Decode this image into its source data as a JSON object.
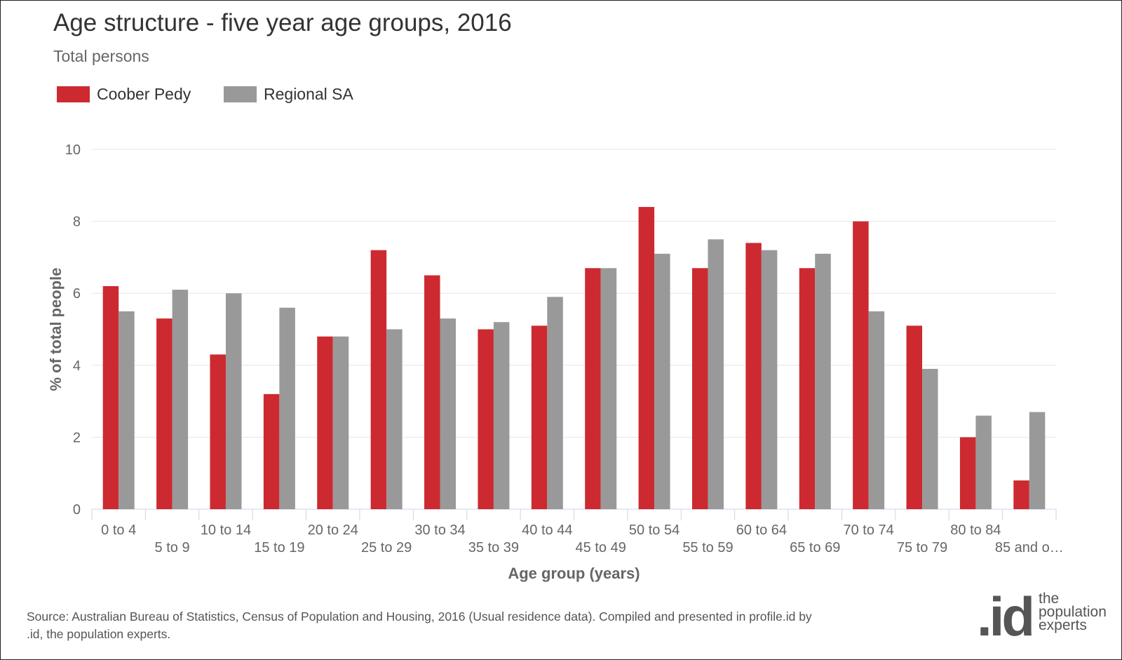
{
  "title": "Age structure - five year age groups, 2016",
  "subtitle": "Total persons",
  "legend": [
    {
      "label": "Coober Pedy",
      "color": "#cc2a30"
    },
    {
      "label": "Regional SA",
      "color": "#999999"
    }
  ],
  "source": "Source: Australian Bureau of Statistics, Census of Population and Housing, 2016 (Usual residence data). Compiled and presented in profile.id by .id, the population experts.",
  "logo": {
    "mark": ".id",
    "line1": "the",
    "line2": "population",
    "line3": "experts"
  },
  "chart_data": {
    "type": "bar",
    "title": "Age structure - five year age groups, 2016",
    "subtitle": "Total persons",
    "xlabel": "Age group (years)",
    "ylabel": "% of total people",
    "ylim": [
      0,
      10
    ],
    "yticks": [
      0,
      2,
      4,
      6,
      8,
      10
    ],
    "grid": true,
    "legend_position": "top-left",
    "categories": [
      "0 to 4",
      "5 to 9",
      "10 to 14",
      "15 to 19",
      "20 to 24",
      "25 to 29",
      "30 to 34",
      "35 to 39",
      "40 to 44",
      "45 to 49",
      "50 to 54",
      "55 to 59",
      "60 to 64",
      "65 to 69",
      "70 to 74",
      "75 to 79",
      "80 to 84",
      "85 and o…"
    ],
    "series": [
      {
        "name": "Coober Pedy",
        "color": "#cc2a30",
        "values": [
          6.2,
          5.3,
          4.3,
          3.2,
          4.8,
          7.2,
          6.5,
          5.0,
          5.1,
          6.7,
          8.4,
          6.7,
          7.4,
          6.7,
          8.0,
          5.1,
          2.0,
          0.8
        ]
      },
      {
        "name": "Regional SA",
        "color": "#999999",
        "values": [
          5.5,
          6.1,
          6.0,
          5.6,
          4.8,
          5.0,
          5.3,
          5.2,
          5.9,
          6.7,
          7.1,
          7.5,
          7.2,
          7.1,
          5.5,
          3.9,
          2.6,
          2.7
        ]
      }
    ]
  }
}
